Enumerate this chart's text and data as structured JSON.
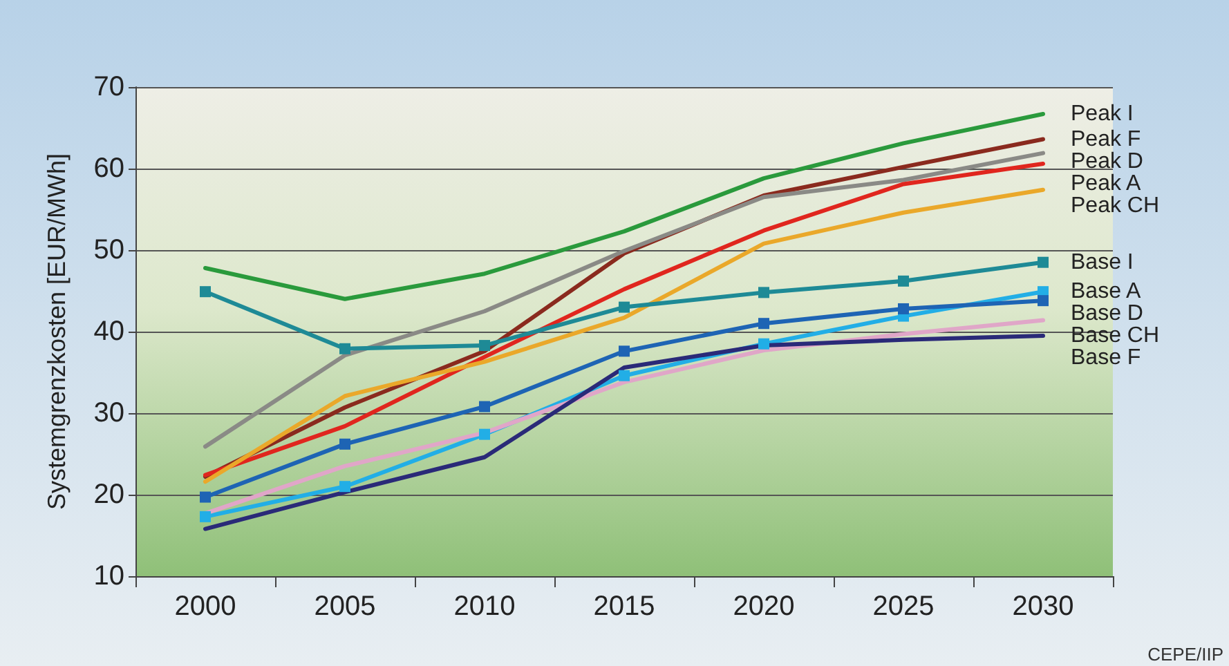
{
  "chart_data": {
    "type": "line",
    "ylabel": "Systemgrenzkosten [EUR/MWh]",
    "categories": [
      "2000",
      "2005",
      "2010",
      "2015",
      "2020",
      "2025",
      "2030"
    ],
    "ylim": [
      10,
      70
    ],
    "yticks": [
      10,
      20,
      30,
      40,
      50,
      60,
      70
    ],
    "grid": "y",
    "marker": "none",
    "line_style": "solid",
    "series": [
      {
        "name": "Peak I",
        "color": "#2a9a3c",
        "values": [
          47.8,
          44.0,
          47.1,
          52.3,
          58.8,
          63.1,
          66.7
        ]
      },
      {
        "name": "Peak F",
        "color": "#8a2a1e",
        "values": [
          22.2,
          30.7,
          37.6,
          49.6,
          56.7,
          60.2,
          63.6
        ]
      },
      {
        "name": "Peak D",
        "color": "#8a8a86",
        "values": [
          25.9,
          37.1,
          42.5,
          49.9,
          56.5,
          58.6,
          61.9
        ]
      },
      {
        "name": "Peak A",
        "color": "#e0261e",
        "values": [
          22.4,
          28.4,
          36.9,
          45.2,
          52.4,
          58.1,
          60.6
        ]
      },
      {
        "name": "Peak CH",
        "color": "#eaa82a",
        "values": [
          21.6,
          32.1,
          36.3,
          41.7,
          50.8,
          54.6,
          57.4
        ]
      },
      {
        "name": "Base I",
        "color": "#1e8a96",
        "marker": "square",
        "values": [
          44.9,
          37.9,
          38.3,
          43.0,
          44.8,
          46.2,
          48.5
        ]
      },
      {
        "name": "Base A",
        "color": "#22aee6",
        "marker": "square",
        "values": [
          17.3,
          21.0,
          27.4,
          34.6,
          38.5,
          41.9,
          44.9
        ]
      },
      {
        "name": "Base D",
        "color": "#1e64b4",
        "marker": "square",
        "values": [
          19.7,
          26.2,
          30.8,
          37.6,
          41.0,
          42.8,
          43.8
        ]
      },
      {
        "name": "Base CH",
        "color": "#e0a6c8",
        "values": [
          17.7,
          23.5,
          27.6,
          33.8,
          37.7,
          39.7,
          41.4
        ]
      },
      {
        "name": "Base F",
        "color": "#2a2a78",
        "values": [
          15.8,
          20.3,
          24.6,
          35.6,
          38.3,
          39.0,
          39.5
        ]
      }
    ],
    "annotations": [
      "CEPE/IIP"
    ]
  }
}
